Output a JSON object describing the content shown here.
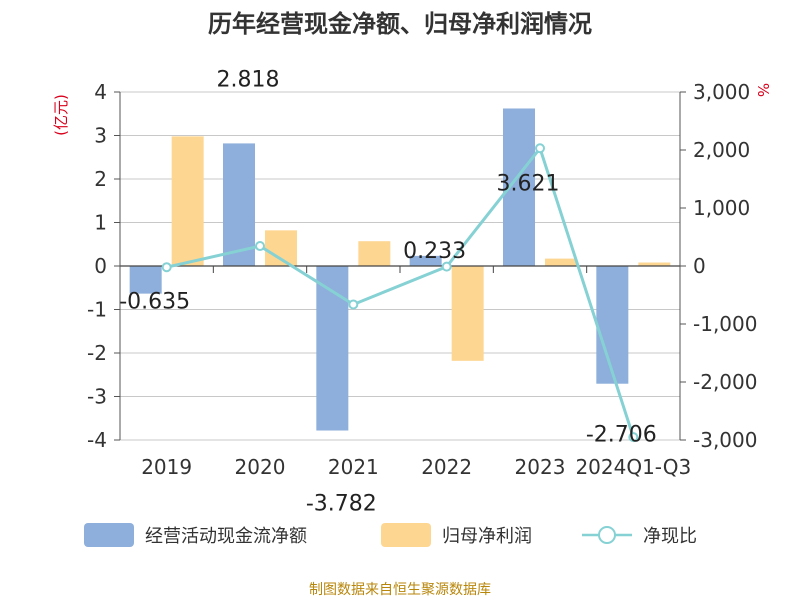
{
  "chart_data": {
    "type": "bar",
    "title": "历年经营现金净额、归母净利润情况",
    "left_unit": "(亿元)",
    "right_unit": "%",
    "categories": [
      "2019",
      "2020",
      "2021",
      "2022",
      "2023",
      "2024Q1-Q3"
    ],
    "left_axis": {
      "min": -4,
      "max": 4,
      "step": 1,
      "tick_labels": [
        "4",
        "3",
        "2",
        "1",
        "0",
        "-1",
        "-2",
        "-3",
        "-4"
      ]
    },
    "right_axis": {
      "min": -3000,
      "max": 3000,
      "step": 1000,
      "tick_labels": [
        "3,000",
        "2,000",
        "1,000",
        "0",
        "-1,000",
        "-2,000",
        "-3,000"
      ]
    },
    "series": [
      {
        "name": "经营活动现金流净额",
        "kind": "bar",
        "axis": "left",
        "color": "#8eaedb",
        "values": [
          -0.635,
          2.818,
          -3.782,
          0.233,
          3.621,
          -2.706
        ],
        "labels": [
          "-0.635",
          "2.818",
          "-3.782",
          "0.233",
          "3.621",
          "-2.706"
        ]
      },
      {
        "name": "归母净利润",
        "kind": "bar",
        "axis": "left",
        "color": "#fdd692",
        "values": [
          2.98,
          0.82,
          0.57,
          -2.18,
          0.17,
          0.08
        ]
      },
      {
        "name": "净现比",
        "kind": "line",
        "axis": "right",
        "color": "#85d1d4",
        "values": [
          -21,
          344,
          -663,
          -11,
          2030,
          -2950
        ]
      }
    ],
    "legend_position": "bottom",
    "grid": true
  },
  "footer": {
    "source": "制图数据来自恒生聚源数据库"
  },
  "colors": {
    "title": "#333333",
    "axis_text": "#333333",
    "unit_text": "#d9001b",
    "grid": "#c8c8c8",
    "source": "#b8860b"
  }
}
